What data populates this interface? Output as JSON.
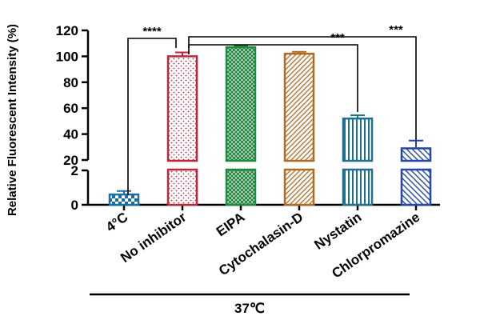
{
  "chart_data": {
    "type": "bar",
    "ylabel": "Relative Fluorescent Intensity (%)",
    "y_axis": {
      "broken": true,
      "lower_range": [
        0,
        2
      ],
      "upper_range": [
        20,
        120
      ],
      "lower_ticks": [
        "0",
        "2"
      ],
      "upper_ticks": [
        "20",
        "40",
        "60",
        "80",
        "100",
        "120"
      ]
    },
    "categories": [
      "4°C",
      "No inhibitor",
      "EIPA",
      "Cytochalasin-D",
      "Nystatin",
      "Chlorpromazine"
    ],
    "values": [
      0.6,
      100,
      107,
      102,
      52,
      29
    ],
    "errors": [
      0.2,
      3,
      1,
      1.5,
      2.5,
      6
    ],
    "colors": [
      "#1a6fa0",
      "#c0263a",
      "#1f8a3b",
      "#b06a22",
      "#1f6f8f",
      "#2446a8"
    ],
    "patterns": [
      "checker",
      "dots",
      "crosshatch",
      "diag-right",
      "vertical",
      "diag-left"
    ],
    "significance": [
      {
        "from": 0,
        "to": 1,
        "label": "****"
      },
      {
        "from": 1,
        "to": 4,
        "label": "***"
      },
      {
        "from": 1,
        "to": 5,
        "label": "***"
      }
    ],
    "group_label": "37℃",
    "group_span": [
      1,
      5
    ]
  }
}
